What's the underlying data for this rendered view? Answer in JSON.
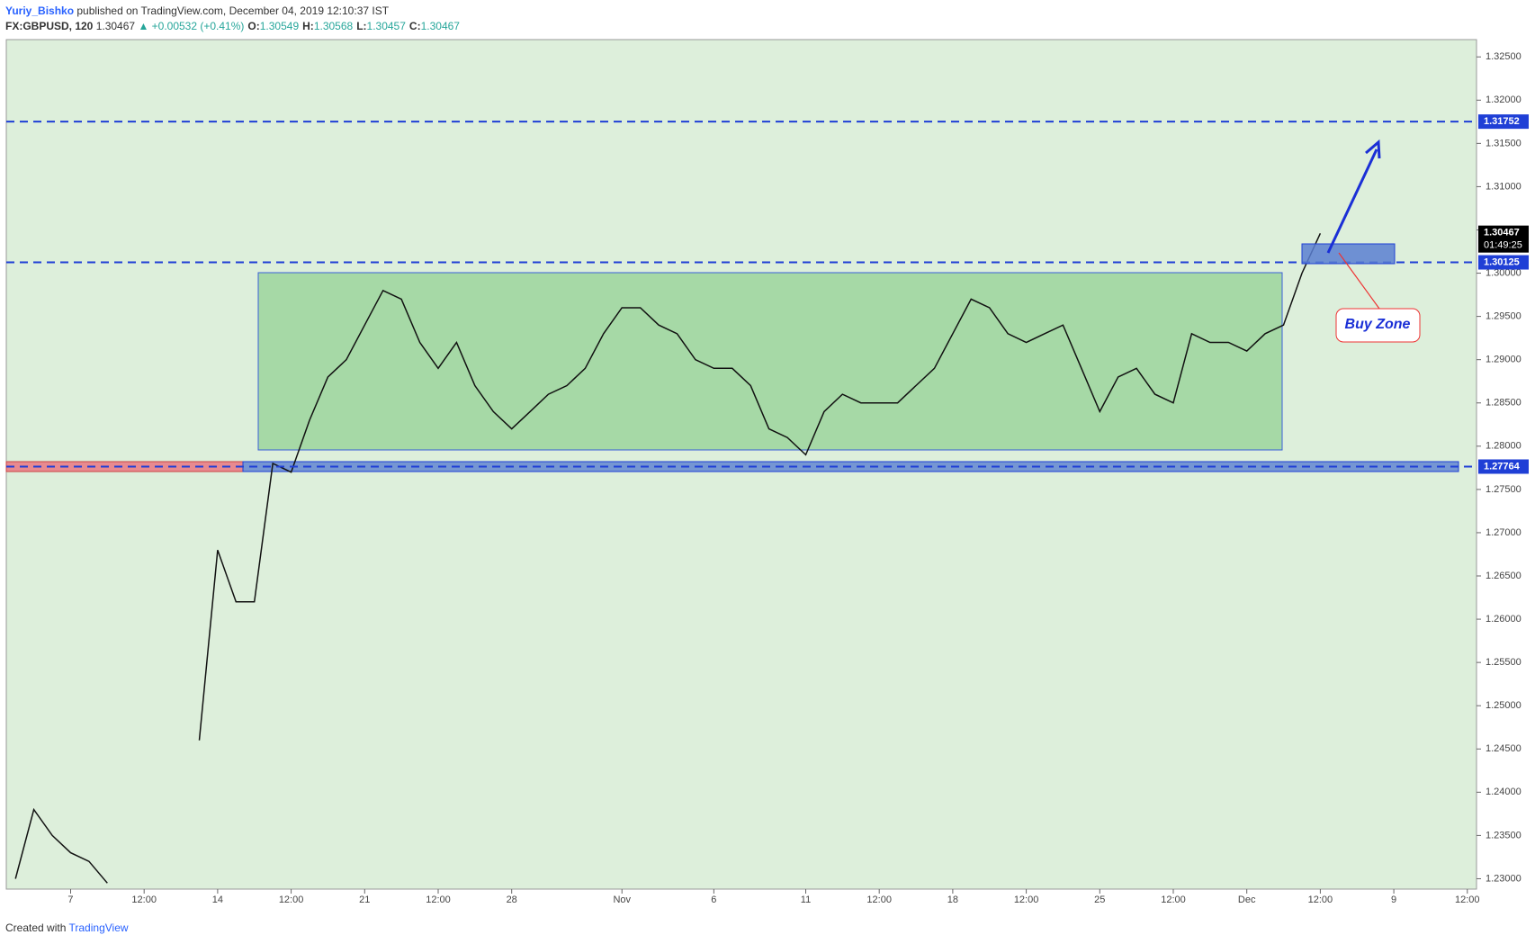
{
  "header": {
    "author": "Yuriy_Bishko",
    "published": "published on TradingView.com, December 04, 2019 12:10:37 IST",
    "symbol": "FX:GBPUSD, 120",
    "last": "1.30467",
    "change": "▲ +0.00532 (+0.41%)",
    "ohlc": [
      {
        "label": "O:",
        "value": "1.30549"
      },
      {
        "label": "H:",
        "value": "1.30568"
      },
      {
        "label": "L:",
        "value": "1.30457"
      },
      {
        "label": "C:",
        "value": "1.30467"
      }
    ]
  },
  "footer": {
    "created": "Created with",
    "brand": "TradingView"
  },
  "chart_data": {
    "type": "line",
    "color": "#111111",
    "categories": [
      null,
      null,
      null,
      "7",
      null,
      null,
      null,
      "12:00",
      null,
      null,
      null,
      "14",
      null,
      null,
      null,
      "12:00",
      null,
      null,
      null,
      "21",
      null,
      null,
      null,
      "12:00",
      null,
      null,
      null,
      "28",
      null,
      null,
      null,
      null,
      null,
      "Nov",
      null,
      null,
      null,
      null,
      "6",
      null,
      null,
      null,
      null,
      "11",
      null,
      null,
      null,
      "12:00",
      null,
      null,
      null,
      "18",
      null,
      null,
      null,
      "12:00",
      null,
      null,
      null,
      "25",
      null,
      null,
      null,
      "12:00",
      null,
      null,
      null,
      "Dec",
      null,
      null,
      null,
      "12:00",
      null,
      null,
      null,
      "9",
      null,
      null,
      null,
      "12:00"
    ],
    "values": [
      1.23,
      1.238,
      1.235,
      1.233,
      1.232,
      1.2295,
      null,
      null,
      null,
      null,
      1.246,
      1.268,
      1.262,
      1.262,
      1.278,
      1.277,
      1.283,
      1.288,
      1.29,
      1.294,
      1.298,
      1.297,
      1.292,
      1.289,
      1.292,
      1.287,
      1.284,
      1.282,
      1.284,
      1.286,
      1.287,
      1.289,
      1.293,
      1.296,
      1.296,
      1.294,
      1.293,
      1.29,
      1.289,
      1.289,
      1.287,
      1.282,
      1.281,
      1.279,
      1.284,
      1.286,
      1.285,
      1.285,
      1.285,
      1.287,
      1.289,
      1.293,
      1.297,
      1.296,
      1.293,
      1.292,
      1.293,
      1.294,
      1.289,
      1.284,
      1.288,
      1.289,
      1.286,
      1.285,
      1.293,
      1.292,
      1.292,
      1.291,
      1.293,
      1.294,
      1.3,
      1.3046,
      null,
      null,
      null,
      null,
      null,
      null,
      null,
      null
    ],
    "ylim": [
      1.2288,
      1.327
    ],
    "yticks": [
      {
        "value": 1.23,
        "label": "1.23000"
      },
      {
        "value": 1.235,
        "label": "1.23500"
      },
      {
        "value": 1.24,
        "label": "1.24000"
      },
      {
        "value": 1.245,
        "label": "1.24500"
      },
      {
        "value": 1.25,
        "label": "1.25000"
      },
      {
        "value": 1.255,
        "label": "1.25500"
      },
      {
        "value": 1.26,
        "label": "1.26000"
      },
      {
        "value": 1.265,
        "label": "1.26500"
      },
      {
        "value": 1.27,
        "label": "1.27000"
      },
      {
        "value": 1.275,
        "label": "1.27500"
      },
      {
        "value": 1.28,
        "label": "1.28000"
      },
      {
        "value": 1.285,
        "label": "1.28500"
      },
      {
        "value": 1.29,
        "label": "1.29000"
      },
      {
        "value": 1.295,
        "label": "1.29500"
      },
      {
        "value": 1.3,
        "label": "1.30000"
      },
      {
        "value": 1.305,
        "label": "1.30500"
      },
      {
        "value": 1.31,
        "label": "1.31000"
      },
      {
        "value": 1.315,
        "label": "1.31500"
      },
      {
        "value": 1.32,
        "label": "1.32000"
      },
      {
        "value": 1.325,
        "label": "1.32500"
      }
    ],
    "levels": [
      1.31752,
      1.30125,
      1.27764
    ],
    "level_color": "#1f3fd6",
    "last_price": 1.30467,
    "countdown": "01:49:25",
    "annotation": "Buy Zone"
  }
}
